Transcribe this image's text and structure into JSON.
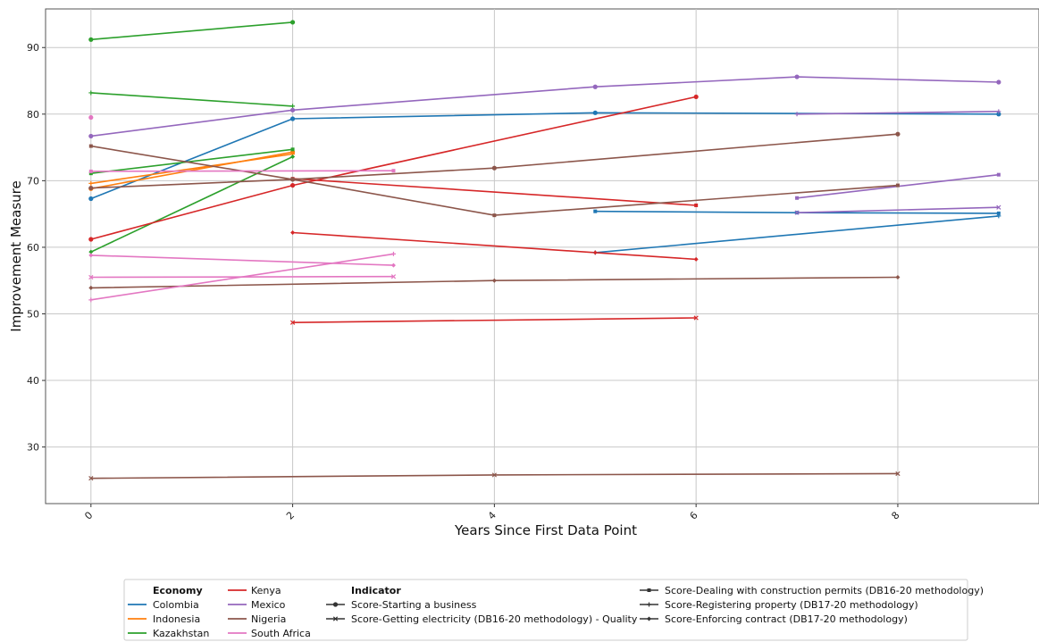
{
  "chart_data": {
    "type": "line",
    "xlabel": "Years Since First Data Point",
    "ylabel": "Improvement Measure",
    "xlim": [
      -0.45,
      9.4
    ],
    "ylim": [
      21.5,
      95.8
    ],
    "xticks": [
      0,
      2,
      4,
      6,
      8
    ],
    "yticks": [
      30,
      40,
      50,
      60,
      70,
      80,
      90
    ],
    "grid": true,
    "legend_position": "bottom-center",
    "legend": {
      "economy_title": "Economy",
      "indicator_title": "Indicator",
      "economies": [
        {
          "name": "Colombia",
          "color": "#1f77b4"
        },
        {
          "name": "Indonesia",
          "color": "#ff7f0e"
        },
        {
          "name": "Kazakhstan",
          "color": "#2ca02c"
        },
        {
          "name": "Kenya",
          "color": "#d62728"
        },
        {
          "name": "Mexico",
          "color": "#9467bd"
        },
        {
          "name": "Nigeria",
          "color": "#8c564b"
        },
        {
          "name": "South Africa",
          "color": "#e377c2"
        }
      ],
      "indicators": [
        {
          "name": "Score-Starting a business",
          "marker": "circle"
        },
        {
          "name": "Score-Getting electricity (DB16-20 methodology) - Quality",
          "marker": "x"
        },
        {
          "name": "Score-Dealing with construction permits (DB16-20 methodology)",
          "marker": "square"
        },
        {
          "name": "Score-Registering property (DB17-20 methodology)",
          "marker": "plus"
        },
        {
          "name": "Score-Enforcing contract (DB17-20 methodology)",
          "marker": "diamond"
        }
      ]
    },
    "series": [
      {
        "economy": "Colombia",
        "indicator": "Score-Starting a business",
        "x": [
          0,
          2,
          5,
          9
        ],
        "y": [
          67.3,
          79.3,
          80.2,
          80.0
        ]
      },
      {
        "economy": "Colombia",
        "indicator": "Score-Registering property (DB17-20 methodology)",
        "x": [
          5,
          9
        ],
        "y": [
          59.2,
          64.7
        ]
      },
      {
        "economy": "Colombia",
        "indicator": "Score-Dealing with construction permits (DB16-20 methodology)",
        "x": [
          5,
          7,
          9
        ],
        "y": [
          65.4,
          65.2,
          65.1
        ]
      },
      {
        "economy": "Indonesia",
        "indicator": "Score-Starting a business",
        "x": [
          0,
          2
        ],
        "y": [
          68.8,
          74.3
        ]
      },
      {
        "economy": "Indonesia",
        "indicator": "Score-Registering property (DB17-20 methodology)",
        "x": [
          0,
          2
        ],
        "y": [
          69.6,
          74.0
        ]
      },
      {
        "economy": "Kazakhstan",
        "indicator": "Score-Starting a business",
        "x": [
          0,
          2
        ],
        "y": [
          91.2,
          93.8
        ]
      },
      {
        "economy": "Kazakhstan",
        "indicator": "Score-Registering property (DB17-20 methodology)",
        "x": [
          0,
          2
        ],
        "y": [
          83.2,
          81.2
        ]
      },
      {
        "economy": "Kazakhstan",
        "indicator": "Score-Dealing with construction permits (DB16-20 methodology)",
        "x": [
          0,
          2
        ],
        "y": [
          71.1,
          74.7
        ]
      },
      {
        "economy": "Kazakhstan",
        "indicator": "Score-Enforcing contract (DB17-20 methodology)",
        "x": [
          0,
          2
        ],
        "y": [
          59.3,
          73.6
        ]
      },
      {
        "economy": "Kenya",
        "indicator": "Score-Starting a business",
        "x": [
          0,
          2,
          6
        ],
        "y": [
          61.2,
          69.3,
          82.6
        ]
      },
      {
        "economy": "Kenya",
        "indicator": "Score-Dealing with construction permits (DB16-20 methodology)",
        "x": [
          2,
          6
        ],
        "y": [
          70.3,
          66.3
        ]
      },
      {
        "economy": "Kenya",
        "indicator": "Score-Enforcing contract (DB17-20 methodology)",
        "x": [
          2,
          5,
          6
        ],
        "y": [
          62.2,
          59.2,
          58.2
        ]
      },
      {
        "economy": "Kenya",
        "indicator": "Score-Getting electricity (DB16-20 methodology) - Quality",
        "x": [
          2,
          6
        ],
        "y": [
          48.7,
          49.4
        ]
      },
      {
        "economy": "Mexico",
        "indicator": "Score-Starting a business",
        "x": [
          0,
          2,
          5,
          7,
          9
        ],
        "y": [
          76.7,
          80.6,
          84.1,
          85.6,
          84.8
        ]
      },
      {
        "economy": "Mexico",
        "indicator": "Score-Registering property (DB17-20 methodology)",
        "x": [
          7,
          9
        ],
        "y": [
          80.0,
          80.4
        ]
      },
      {
        "economy": "Mexico",
        "indicator": "Score-Dealing with construction permits (DB16-20 methodology)",
        "x": [
          7,
          9
        ],
        "y": [
          67.4,
          70.9
        ]
      },
      {
        "economy": "Nigeria",
        "indicator": "Score-Starting a business",
        "x": [
          0,
          2,
          4,
          8
        ],
        "y": [
          68.9,
          70.2,
          71.9,
          77.0
        ]
      },
      {
        "economy": "Nigeria",
        "indicator": "Score-Dealing with construction permits (DB16-20 methodology)",
        "x": [
          0,
          2,
          4,
          8
        ],
        "y": [
          75.2,
          70.2,
          64.8,
          69.3
        ]
      },
      {
        "economy": "Nigeria",
        "indicator": "Score-Enforcing contract (DB17-20 methodology)",
        "x": [
          0,
          4,
          8
        ],
        "y": [
          53.9,
          55.0,
          55.5
        ]
      },
      {
        "economy": "Nigeria",
        "indicator": "Score-Getting electricity (DB16-20 methodology) - Quality",
        "x": [
          0,
          4,
          8
        ],
        "y": [
          25.3,
          25.8,
          26.0
        ]
      },
      {
        "economy": "South Africa",
        "indicator": "Score-Starting a business",
        "x": [
          0
        ],
        "y": [
          79.5
        ]
      },
      {
        "economy": "South Africa",
        "indicator": "Score-Dealing with construction permits (DB16-20 methodology)",
        "x": [
          0,
          3
        ],
        "y": [
          71.4,
          71.5
        ]
      },
      {
        "economy": "South Africa",
        "indicator": "Score-Registering property (DB17-20 methodology)",
        "x": [
          0,
          3
        ],
        "y": [
          52.1,
          59.0
        ]
      },
      {
        "economy": "South Africa",
        "indicator": "Score-Enforcing contract (DB17-20 methodology)",
        "x": [
          0,
          3
        ],
        "y": [
          58.8,
          57.3
        ]
      },
      {
        "economy": "South Africa",
        "indicator": "Score-Getting electricity (DB16-20 methodology) - Quality",
        "x": [
          0,
          3
        ],
        "y": [
          55.5,
          55.6
        ]
      },
      {
        "economy": "Mexico",
        "indicator": "Score-Getting electricity (DB16-20 methodology) - Quality",
        "x": [
          7,
          9
        ],
        "y": [
          65.2,
          66.0
        ]
      }
    ]
  }
}
